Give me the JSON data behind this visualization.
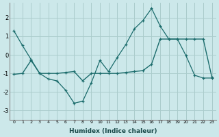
{
  "xlabel": "Humidex (Indice chaleur)",
  "bg_color": "#cce8ea",
  "grid_color": "#aacccc",
  "line_color": "#1a6b6b",
  "line1_x": [
    0,
    1,
    2,
    3,
    4,
    5,
    6,
    7,
    8,
    9,
    10,
    11,
    12,
    13,
    14,
    15,
    16,
    17,
    18,
    19,
    20,
    21,
    22,
    23
  ],
  "line1_y": [
    1.3,
    0.5,
    -0.25,
    -1.0,
    -1.3,
    -1.4,
    -1.9,
    -2.6,
    -2.5,
    -1.5,
    -0.3,
    -0.9,
    -0.15,
    0.55,
    1.4,
    1.85,
    2.5,
    1.55,
    0.85,
    0.85,
    -0.05,
    -1.1,
    -1.25,
    -1.25
  ],
  "line2_x": [
    0,
    1,
    2,
    3,
    4,
    5,
    6,
    7,
    8,
    9,
    10,
    11,
    12,
    13,
    14,
    15,
    16,
    17,
    18,
    19,
    20,
    21,
    22,
    23
  ],
  "line2_y": [
    -1.05,
    -1.0,
    -0.3,
    -1.0,
    -1.0,
    -1.0,
    -0.95,
    -0.9,
    -1.4,
    -1.0,
    -1.0,
    -1.0,
    -1.0,
    -0.95,
    -0.9,
    -0.85,
    -0.5,
    0.85,
    0.85,
    0.85,
    0.85,
    0.85,
    0.85,
    -1.2
  ],
  "ylim": [
    -3.5,
    2.8
  ],
  "yticks": [
    -3,
    -2,
    -1,
    0,
    1,
    2
  ],
  "xlim": [
    -0.5,
    23.5
  ]
}
